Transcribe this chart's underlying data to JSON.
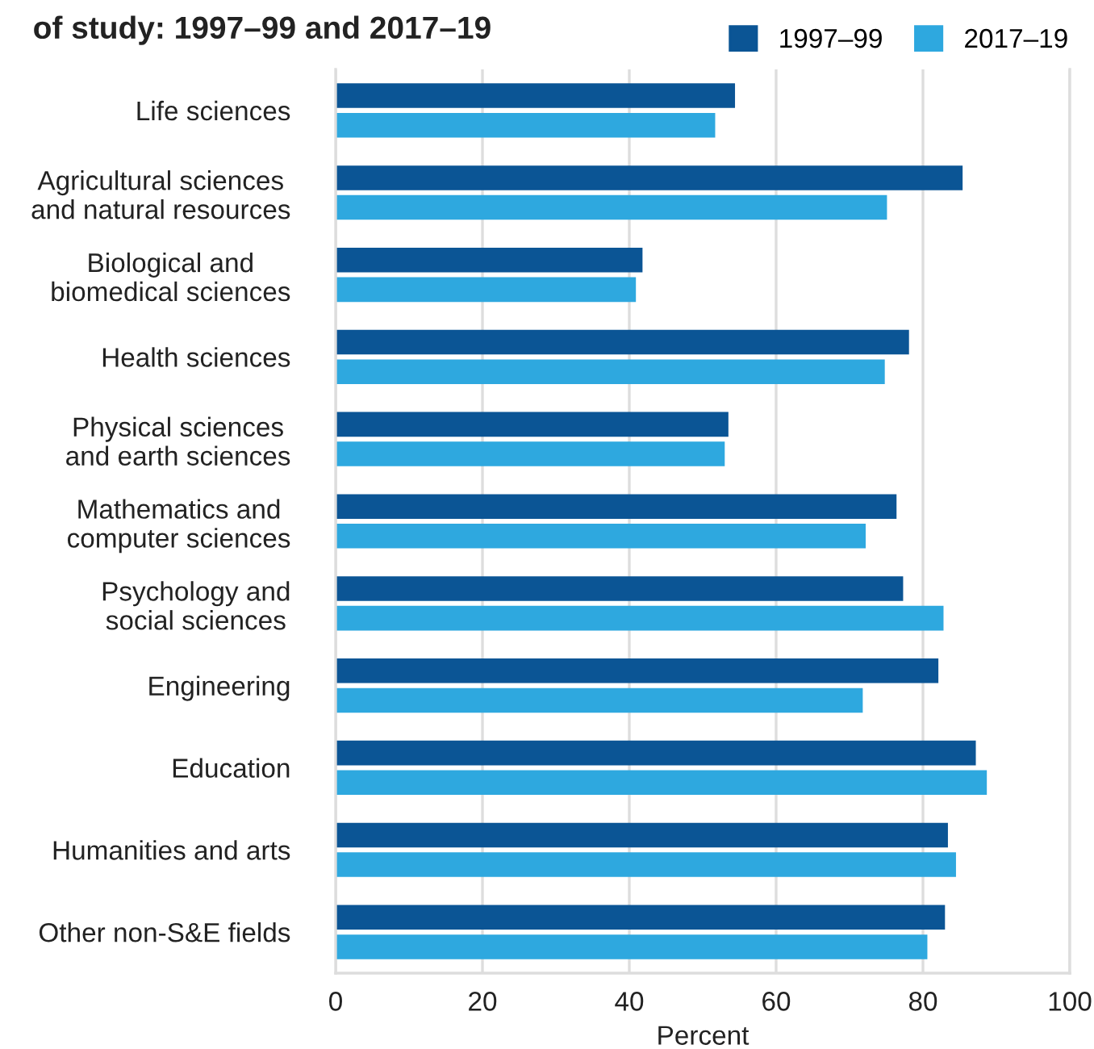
{
  "chart_data": {
    "type": "bar",
    "orientation": "horizontal",
    "title": "of study: 1997–99 and 2017–19",
    "xlabel": "Percent",
    "categories": [
      "Life sciences",
      "Agricultural sciences\nand natural resources",
      "Biological and\nbiomedical sciences",
      "Health sciences",
      "Physical sciences\nand earth sciences",
      "Mathematics and\ncomputer sciences",
      "Psychology and\nsocial sciences",
      "Engineering",
      "Education",
      "Humanities and arts",
      "Other non-S&E fields"
    ],
    "series": [
      {
        "name": "1997–99",
        "color": "#0b5595",
        "values": [
          54.4,
          85.4,
          41.8,
          78.1,
          53.5,
          76.4,
          77.3,
          82.1,
          87.2,
          83.4,
          83.0
        ]
      },
      {
        "name": "2017–19",
        "color": "#2ea8df",
        "values": [
          51.7,
          75.1,
          40.9,
          74.8,
          53.0,
          72.2,
          82.8,
          71.8,
          88.7,
          84.5,
          80.6
        ]
      }
    ],
    "xlim": [
      0,
      100
    ],
    "xticks": [
      0,
      20,
      40,
      60,
      80,
      100
    ],
    "grid": "x",
    "legend": "top right"
  }
}
